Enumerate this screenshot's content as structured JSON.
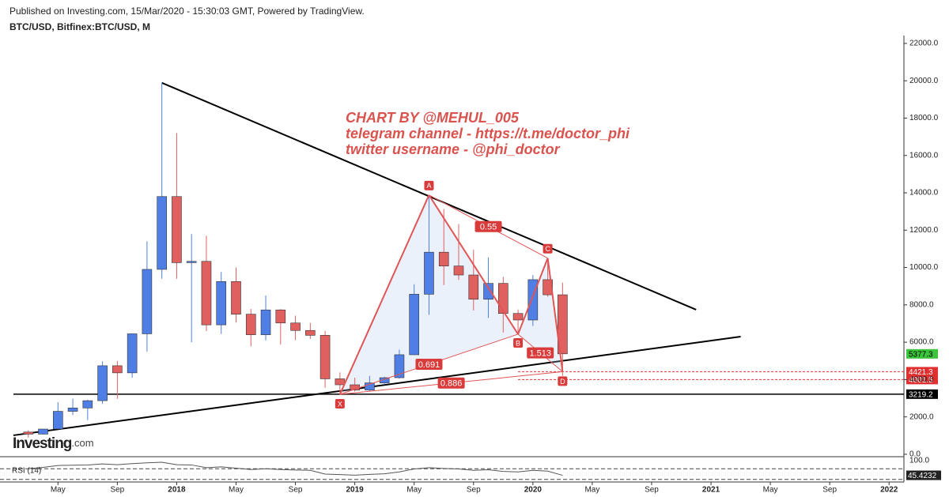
{
  "chart_data": {
    "type": "candlestick",
    "subtitle": "Published on Investing.com, 15/Mar/2020 - 15:30:03 GMT, Powered by TradingView.",
    "title": "BTC/USD, Bitfinex:BTC/USD, M",
    "annotations": [
      "CHART BY @MEHUL_005",
      "telegram channel - https://t.me/doctor_phi",
      "twitter username - @phi_doctor"
    ],
    "logo": [
      "Investing",
      ".com"
    ],
    "x": [
      "2017-03",
      "2017-04",
      "2017-05",
      "2017-06",
      "2017-07",
      "2017-08",
      "2017-09",
      "2017-10",
      "2017-11",
      "2017-12",
      "2018-01",
      "2018-02",
      "2018-03",
      "2018-04",
      "2018-05",
      "2018-06",
      "2018-07",
      "2018-08",
      "2018-09",
      "2018-10",
      "2018-11",
      "2018-12",
      "2019-01",
      "2019-02",
      "2019-03",
      "2019-04",
      "2019-05",
      "2019-06",
      "2019-07",
      "2019-08",
      "2019-09",
      "2019-10",
      "2019-11",
      "2019-12",
      "2020-01",
      "2020-02",
      "2020-03"
    ],
    "open": [
      1190,
      1080,
      1350,
      2300,
      2480,
      2870,
      4740,
      4360,
      6450,
      9900,
      13800,
      10260,
      10330,
      6930,
      9250,
      7500,
      6400,
      7730,
      7030,
      6630,
      6370,
      4040,
      3720,
      3440,
      3820,
      4100,
      5330,
      8570,
      10820,
      10080,
      9600,
      8300,
      9150,
      7540,
      7190,
      9350,
      8540
    ],
    "high": [
      1280,
      1350,
      2790,
      2980,
      2920,
      4980,
      5000,
      6450,
      11400,
      19891,
      17200,
      11790,
      11700,
      9760,
      10000,
      7780,
      8500,
      7770,
      7420,
      7030,
      6600,
      4380,
      4100,
      4200,
      4150,
      5600,
      9100,
      13880,
      13130,
      12330,
      10950,
      10540,
      9500,
      7750,
      9590,
      10500,
      9190
    ],
    "low": [
      890,
      1060,
      1350,
      2100,
      1830,
      2700,
      2970,
      4100,
      5500,
      9400,
      9400,
      6000,
      6600,
      6440,
      7050,
      5780,
      6100,
      5880,
      6110,
      6180,
      3560,
      3211,
      3360,
      3390,
      3730,
      4050,
      5330,
      7470,
      9060,
      9330,
      7700,
      7300,
      6520,
      6430,
      6870,
      8440,
      4200
    ],
    "close": [
      1080,
      1350,
      2300,
      2480,
      2870,
      4740,
      4360,
      6450,
      9900,
      13800,
      10260,
      10330,
      6930,
      9250,
      7500,
      6400,
      7730,
      7030,
      6630,
      6370,
      4040,
      3720,
      3440,
      3820,
      4100,
      5330,
      8570,
      10820,
      10080,
      9600,
      8300,
      9150,
      7540,
      7190,
      9350,
      8540,
      5377.3
    ],
    "up_color": "#4f7fe5",
    "down_color": "#e06060",
    "last_color": "#3cc43c",
    "xlim": [
      "2017-02",
      "2022-02"
    ],
    "xticks": [
      {
        "value": "2017-05",
        "label": "May"
      },
      {
        "value": "2017-09",
        "label": "Sep"
      },
      {
        "value": "2018-01",
        "label": "2018"
      },
      {
        "value": "2018-05",
        "label": "May"
      },
      {
        "value": "2018-09",
        "label": "Sep"
      },
      {
        "value": "2019-01",
        "label": "2019"
      },
      {
        "value": "2019-05",
        "label": "May"
      },
      {
        "value": "2019-09",
        "label": "Sep"
      },
      {
        "value": "2020-01",
        "label": "2020"
      },
      {
        "value": "2020-05",
        "label": "May"
      },
      {
        "value": "2020-09",
        "label": "Sep"
      },
      {
        "value": "2021-01",
        "label": "2021"
      },
      {
        "value": "2021-05",
        "label": "May"
      },
      {
        "value": "2021-09",
        "label": "Sep"
      },
      {
        "value": "2022-01",
        "label": "2022"
      }
    ],
    "ylim": [
      -130,
      22420
    ],
    "yticks": [
      {
        "value": 0,
        "label": "0.0"
      },
      {
        "value": 2000,
        "label": "2000.0"
      },
      {
        "value": 4000,
        "label": "4000.0"
      },
      {
        "value": 6000,
        "label": "6000.0"
      },
      {
        "value": 8000,
        "label": "8000.0"
      },
      {
        "value": 10000,
        "label": "10000.0"
      },
      {
        "value": 12000,
        "label": "12000.0"
      },
      {
        "value": 14000,
        "label": "14000.0"
      },
      {
        "value": 16000,
        "label": "16000.0"
      },
      {
        "value": 18000,
        "label": "18000.0"
      },
      {
        "value": 20000,
        "label": "20000.0"
      },
      {
        "value": 22000,
        "label": "22000.0"
      }
    ],
    "trendlines": [
      {
        "x": [
          "2017-12",
          "2020-12"
        ],
        "y": [
          19891,
          7740
        ],
        "color": "#000000"
      },
      {
        "x": [
          "2017-02",
          "2021-03"
        ],
        "y": [
          1015,
          6300
        ],
        "color": "#000000"
      }
    ],
    "levels": [
      {
        "value": 3219.2,
        "start": "2017-02",
        "color": "#000000",
        "dashed": false
      },
      {
        "value": 4421.3,
        "start": "2019-12",
        "color": "#e03030",
        "dashed": true
      },
      {
        "value": 4001.5,
        "start": "2019-12",
        "color": "#e03030",
        "dashed": true
      }
    ],
    "pattern": {
      "color": "#e05555",
      "points": [
        {
          "label": "X",
          "x": "2018-12",
          "y": 3211
        },
        {
          "label": "A",
          "x": "2019-06",
          "y": 13880
        },
        {
          "label": "B",
          "x": "2019-12",
          "y": 6430
        },
        {
          "label": "C",
          "x": "2020-02",
          "y": 10500
        },
        {
          "label": "D",
          "x": "2020-03",
          "y": 4421.3
        }
      ],
      "ratios": [
        0.55,
        0.691,
        1.513,
        0.886
      ]
    },
    "rsi": {
      "label": "RSI (14)",
      "color": "#555555",
      "ylim": [
        0,
        100
      ],
      "yticks": [
        {
          "value": 100,
          "label": "100.0"
        }
      ],
      "levels": [
        70,
        30
      ],
      "values": [
        70,
        75,
        82,
        83,
        84,
        88,
        85,
        89,
        92,
        94,
        85,
        84,
        74,
        77,
        72,
        67,
        70,
        67,
        65,
        64,
        50,
        48,
        46,
        49,
        51,
        58,
        69,
        74,
        71,
        69,
        64,
        66,
        60,
        58,
        64,
        61,
        45.4232
      ]
    }
  }
}
